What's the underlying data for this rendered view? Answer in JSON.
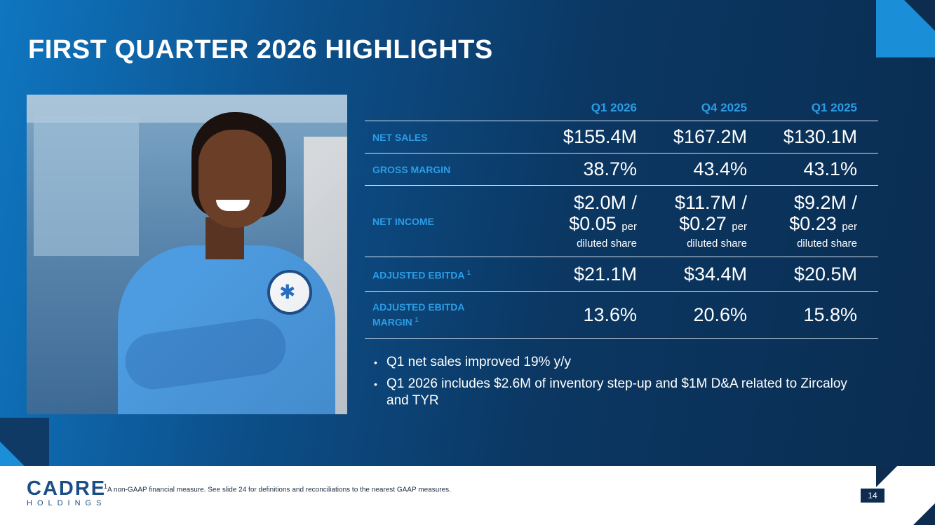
{
  "title": "FIRST QUARTER 2026 HIGHLIGHTS",
  "table": {
    "columns": [
      "Q1 2026",
      "Q4 2025",
      "Q1 2025"
    ],
    "rows": [
      {
        "label": "NET SALES",
        "sup": "",
        "values": [
          "$155.4M",
          "$167.2M",
          "$130.1M"
        ]
      },
      {
        "label": "GROSS MARGIN",
        "sup": "",
        "values": [
          "38.7%",
          "43.4%",
          "43.1%"
        ]
      },
      {
        "label": "ADJUSTED EBITDA",
        "sup": "1",
        "values": [
          "$21.1M",
          "$34.4M",
          "$20.5M"
        ]
      },
      {
        "label": "ADJUSTED EBITDA MARGIN",
        "sup": "1",
        "values": [
          "13.6%",
          "20.6%",
          "15.8%"
        ]
      }
    ],
    "net_income": {
      "label": "NET INCOME",
      "values": [
        {
          "line1": "$2.0M /",
          "line2": "$0.05",
          "per": "per",
          "line3": "diluted share"
        },
        {
          "line1": "$11.7M /",
          "line2": "$0.27",
          "per": "per",
          "line3": "diluted share"
        },
        {
          "line1": "$9.2M /",
          "line2": "$0.23",
          "per": "per",
          "line3": "diluted share"
        }
      ]
    }
  },
  "bullets": [
    "Q1 net sales improved 19% y/y",
    "Q1 2026 includes $2.6M of inventory step-up and $1M D&A related to Zircaloy and TYR"
  ],
  "footer": {
    "logo_main": "CADRE",
    "logo_sub": "HOLDINGS",
    "footnote_sup": "1",
    "footnote": "A non-GAAP financial measure. See slide 24 for definitions and reconciliations to the nearest GAAP measures.",
    "page_number": "14"
  },
  "colors": {
    "accent": "#2b9de6",
    "navy": "#0d2c4f",
    "brand": "#1b4e85"
  }
}
